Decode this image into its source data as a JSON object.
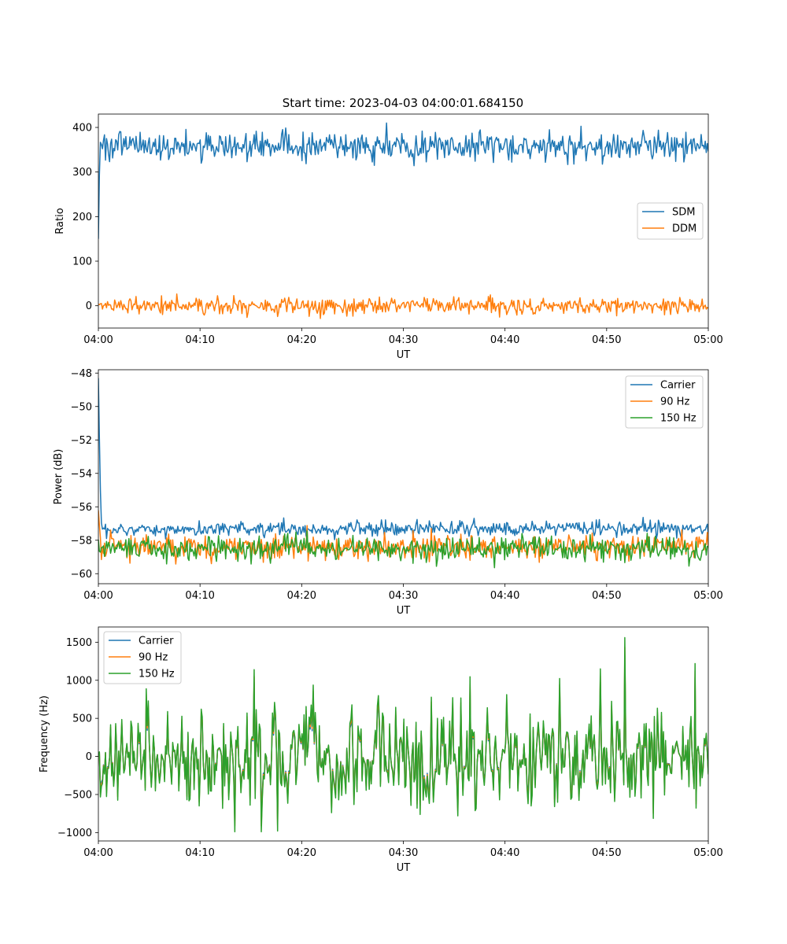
{
  "figure_title": "Start time: 2023-04-03 04:00:01.684150",
  "colors": {
    "blue": "#1f77b4",
    "orange": "#ff7f0e",
    "green": "#2ca02c"
  },
  "chart_data": [
    {
      "type": "line",
      "title": "Start time: 2023-04-03 04:00:01.684150",
      "xlabel": "UT",
      "ylabel": "Ratio",
      "xlim": [
        "04:00",
        "05:00"
      ],
      "xticks": [
        "04:00",
        "04:10",
        "04:20",
        "04:30",
        "04:40",
        "04:50",
        "05:00"
      ],
      "ylim": [
        -50,
        430
      ],
      "yticks": [
        0,
        100,
        200,
        300,
        400
      ],
      "ytick_labels": [
        "0",
        "100",
        "200",
        "300",
        "400"
      ],
      "grid": false,
      "legend": "center-right",
      "series": [
        {
          "name": "SDM",
          "color": "#1f77b4",
          "start_value": 150,
          "typical": 358,
          "spread": 16,
          "range_observed": [
            315,
            410
          ],
          "peak": {
            "x": "04:28:20",
            "y": 410
          }
        },
        {
          "name": "DDM",
          "color": "#ff7f0e",
          "typical": 0,
          "spread": 9,
          "range_observed": [
            -28,
            26
          ]
        }
      ]
    },
    {
      "type": "line",
      "xlabel": "UT",
      "ylabel": "Power (dB)",
      "xlim": [
        "04:00",
        "05:00"
      ],
      "xticks": [
        "04:00",
        "04:10",
        "04:20",
        "04:30",
        "04:40",
        "04:50",
        "05:00"
      ],
      "ylim": [
        -60.6,
        -47.8
      ],
      "yticks": [
        -60,
        -58,
        -56,
        -54,
        -52,
        -50,
        -48
      ],
      "ytick_labels": [
        "−60",
        "−58",
        "−56",
        "−54",
        "−52",
        "−50",
        "−48"
      ],
      "grid": false,
      "legend": "top-right",
      "series": [
        {
          "name": "Carrier",
          "color": "#1f77b4",
          "start_value": -48.3,
          "typical": -57.3,
          "spread": 0.22,
          "range_observed": [
            -57.9,
            -56.4
          ]
        },
        {
          "name": "90 Hz",
          "color": "#ff7f0e",
          "start_value": -56.2,
          "typical": -58.4,
          "spread": 0.38,
          "range_observed": [
            -60.0,
            -57.6
          ]
        },
        {
          "name": "150 Hz",
          "color": "#2ca02c",
          "typical": -58.5,
          "spread": 0.38,
          "range_observed": [
            -60.0,
            -57.4
          ]
        }
      ]
    },
    {
      "type": "line",
      "xlabel": "UT",
      "ylabel": "Frequency (Hz)",
      "xlim": [
        "04:00",
        "05:00"
      ],
      "xticks": [
        "04:00",
        "04:10",
        "04:20",
        "04:30",
        "04:40",
        "04:50",
        "05:00"
      ],
      "ylim": [
        -1110,
        1700
      ],
      "yticks": [
        -1000,
        -500,
        0,
        500,
        1000,
        1500
      ],
      "ytick_labels": [
        "−1000",
        "−500",
        "0",
        "500",
        "1000",
        "1500"
      ],
      "grid": false,
      "legend": "top-left",
      "series": [
        {
          "name": "Carrier",
          "color": "#1f77b4",
          "typical": 0,
          "scale": 0.85,
          "range_observed": [
            -1000,
            1300
          ]
        },
        {
          "name": "90 Hz",
          "color": "#ff7f0e",
          "typical": 0,
          "scale": 0.92,
          "range_observed": [
            -950,
            1450
          ]
        },
        {
          "name": "150 Hz",
          "color": "#2ca02c",
          "typical": 0,
          "scale": 1.0,
          "range_observed": [
            -980,
            1560
          ],
          "peak": {
            "x": "04:51:45",
            "y": 1560
          }
        }
      ]
    }
  ]
}
